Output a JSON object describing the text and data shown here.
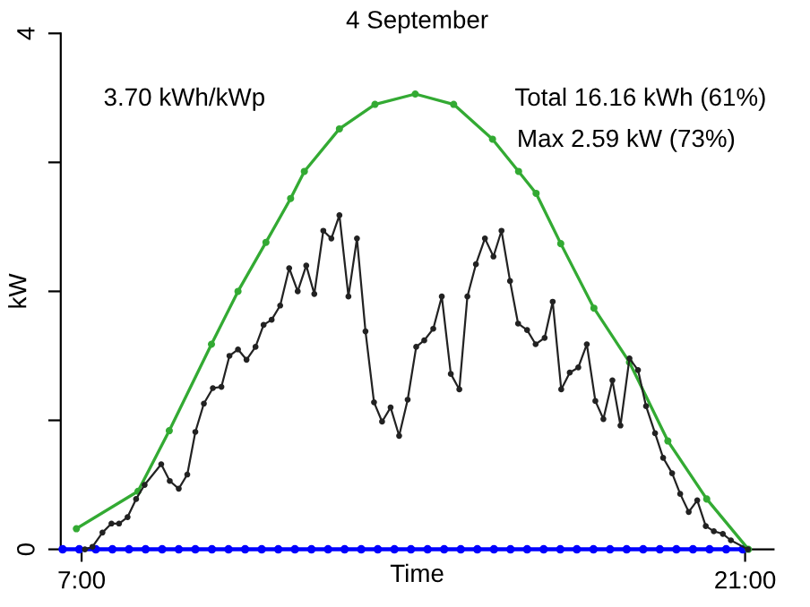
{
  "chart_data": {
    "type": "line",
    "title": "4 September",
    "xlabel": "Time",
    "ylabel": "kW",
    "annotations": [
      "3.70 kWh/kWp",
      "Total 16.16 kWh (61%)",
      "Max 2.59 kW (73%)"
    ],
    "xlim": [
      6.56,
      21.6
    ],
    "ylim": [
      0,
      4
    ],
    "xticks": [
      {
        "value": 7,
        "label": "7:00"
      },
      {
        "value": 21,
        "label": "21:00"
      }
    ],
    "yticks": [
      0,
      {
        "value": 1,
        "label": null
      },
      {
        "value": 2,
        "label": null
      },
      {
        "value": 3,
        "label": null
      },
      4
    ],
    "grid": false,
    "legend": false,
    "marker": "circle",
    "line_style": "solid",
    "series": [
      {
        "color": "#0000ff",
        "x": [
          6.6,
          6.95,
          7.3,
          7.65,
          8.0,
          8.35,
          8.7,
          9.05,
          9.4,
          9.75,
          10.1,
          10.45,
          10.8,
          11.15,
          11.5,
          11.85,
          12.2,
          12.55,
          12.9,
          13.25,
          13.6,
          13.95,
          14.3,
          14.65,
          15.0,
          15.35,
          15.7,
          16.05,
          16.4,
          16.75,
          17.1,
          17.45,
          17.8,
          18.15,
          18.5,
          18.85,
          19.2,
          19.55,
          19.9,
          20.25,
          20.6,
          20.95
        ],
        "values": [
          0,
          0,
          0,
          0,
          0,
          0,
          0,
          0,
          0,
          0,
          0,
          0,
          0,
          0,
          0,
          0,
          0,
          0,
          0,
          0,
          0,
          0,
          0,
          0,
          0,
          0,
          0,
          0,
          0,
          0,
          0,
          0,
          0,
          0,
          0,
          0,
          0,
          0,
          0,
          0,
          0,
          0
        ]
      },
      {
        "color": "#33aa33",
        "x": [
          6.89,
          8.19,
          8.85,
          9.74,
          10.3,
          10.89,
          11.41,
          11.7,
          12.44,
          13.19,
          14.04,
          14.85,
          15.67,
          16.22,
          16.59,
          17.11,
          17.81,
          18.56,
          19.37,
          20.19,
          21.07
        ],
        "values": [
          0.16,
          0.45,
          0.92,
          1.59,
          2.0,
          2.38,
          2.72,
          2.93,
          3.26,
          3.45,
          3.53,
          3.45,
          3.18,
          2.93,
          2.76,
          2.37,
          1.87,
          1.45,
          0.84,
          0.39,
          0
        ]
      },
      {
        "color": "#222222",
        "x": [
          7.07,
          7.23,
          7.44,
          7.63,
          7.79,
          7.97,
          8.15,
          8.33,
          8.68,
          8.86,
          9.05,
          9.23,
          9.4,
          9.58,
          9.77,
          9.95,
          10.12,
          10.3,
          10.48,
          10.67,
          10.84,
          11.01,
          11.19,
          11.38,
          11.56,
          11.74,
          11.91,
          12.1,
          12.27,
          12.44,
          12.63,
          12.81,
          12.99,
          13.17,
          13.34,
          13.52,
          13.7,
          13.88,
          14.06,
          14.23,
          14.42,
          14.6,
          14.79,
          14.97,
          15.14,
          15.32,
          15.51,
          15.69,
          15.86,
          16.04,
          16.21,
          16.4,
          16.58,
          16.77,
          16.94,
          17.12,
          17.3,
          17.48,
          17.66,
          17.84,
          18.01,
          18.2,
          18.37,
          18.56,
          18.74,
          18.91,
          19.1,
          19.27,
          19.46,
          19.63,
          19.81,
          19.99,
          20.17,
          20.34,
          20.53,
          20.7,
          21.06
        ],
        "values": [
          0,
          0.02,
          0.13,
          0.2,
          0.2,
          0.25,
          0.39,
          0.5,
          0.66,
          0.53,
          0.47,
          0.58,
          0.91,
          1.13,
          1.25,
          1.26,
          1.5,
          1.55,
          1.47,
          1.57,
          1.74,
          1.78,
          1.89,
          2.18,
          2.0,
          2.2,
          1.98,
          2.47,
          2.41,
          2.59,
          1.96,
          2.41,
          1.69,
          1.14,
          0.99,
          1.1,
          0.88,
          1.16,
          1.57,
          1.62,
          1.71,
          1.96,
          1.36,
          1.24,
          1.96,
          2.21,
          2.41,
          2.27,
          2.47,
          2.08,
          1.75,
          1.7,
          1.59,
          1.64,
          1.92,
          1.24,
          1.37,
          1.41,
          1.59,
          1.15,
          1.01,
          1.31,
          0.96,
          1.48,
          1.39,
          1.11,
          0.9,
          0.71,
          0.59,
          0.43,
          0.29,
          0.38,
          0.18,
          0.14,
          0.12,
          0.07,
          0
        ]
      }
    ]
  }
}
